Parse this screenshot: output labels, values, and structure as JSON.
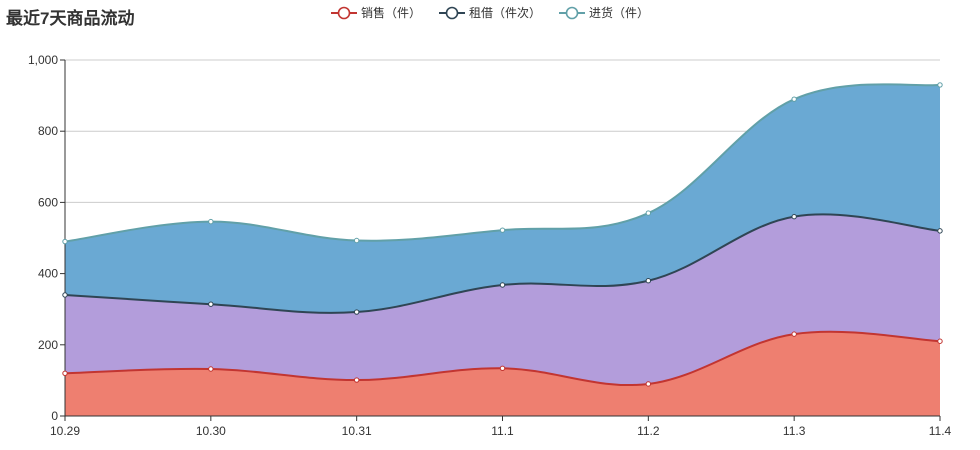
{
  "chart_data": {
    "type": "area",
    "stacked": true,
    "smooth": true,
    "title": "最近7天商品流动",
    "categories": [
      "10.29",
      "10.30",
      "10.31",
      "11.1",
      "11.2",
      "11.3",
      "11.4"
    ],
    "ylim": [
      0,
      1000
    ],
    "yticks": [
      0,
      200,
      400,
      600,
      800,
      1000
    ],
    "ytick_labels": [
      "0",
      "200",
      "400",
      "600",
      "800",
      "1,000"
    ],
    "grid": true,
    "legend_position": "top-center",
    "series": [
      {
        "name": "销售（件）",
        "values": [
          120,
          132,
          101,
          134,
          90,
          230,
          210
        ],
        "line_color": "#c23531",
        "fill_color": "#ee7f70"
      },
      {
        "name": "租借（件次）",
        "values": [
          220,
          182,
          191,
          234,
          290,
          330,
          310
        ],
        "line_color": "#2f4554",
        "fill_color": "#b39ddb"
      },
      {
        "name": "进货（件）",
        "values": [
          150,
          232,
          201,
          154,
          190,
          330,
          410
        ],
        "line_color": "#61a0a8",
        "fill_color": "#6aa9d3"
      }
    ]
  }
}
